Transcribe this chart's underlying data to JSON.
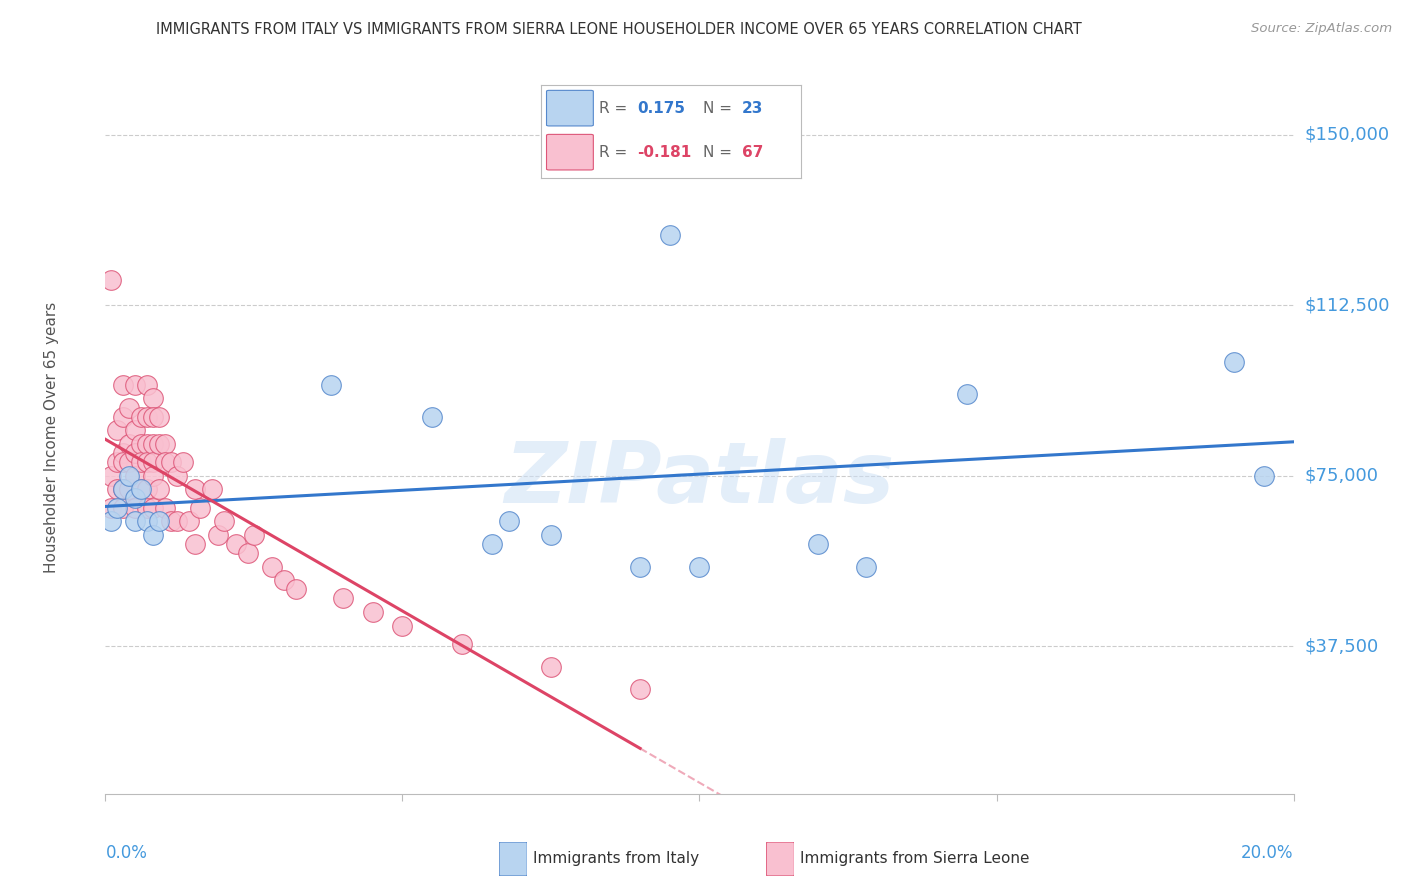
{
  "title": "IMMIGRANTS FROM ITALY VS IMMIGRANTS FROM SIERRA LEONE HOUSEHOLDER INCOME OVER 65 YEARS CORRELATION CHART",
  "source": "Source: ZipAtlas.com",
  "ylabel": "Householder Income Over 65 years",
  "watermark": "ZIPatlas",
  "italy_R": 0.175,
  "italy_N": 23,
  "sl_R": -0.181,
  "sl_N": 67,
  "ytick_labels": [
    "$37,500",
    "$75,000",
    "$112,500",
    "$150,000"
  ],
  "ytick_values": [
    37500,
    75000,
    112500,
    150000
  ],
  "ymin": 5000,
  "ymax": 162000,
  "xmin": 0.0,
  "xmax": 0.2,
  "italy_facecolor": "#b8d4f0",
  "sl_facecolor": "#f9c0d0",
  "italy_edgecolor": "#5588cc",
  "sl_edgecolor": "#dd5577",
  "italy_linecolor": "#3377cc",
  "sl_linecolor": "#dd4466",
  "grid_color": "#cccccc",
  "bg_color": "#ffffff",
  "title_color": "#333333",
  "axis_label_color": "#4499dd",
  "legend_border": "#bbbbbb",
  "italy_x": [
    0.001,
    0.002,
    0.003,
    0.004,
    0.005,
    0.005,
    0.006,
    0.007,
    0.008,
    0.009,
    0.038,
    0.055,
    0.065,
    0.068,
    0.075,
    0.09,
    0.095,
    0.1,
    0.12,
    0.128,
    0.145,
    0.19,
    0.195
  ],
  "italy_y": [
    65000,
    68000,
    72000,
    75000,
    65000,
    70000,
    72000,
    65000,
    62000,
    65000,
    95000,
    88000,
    60000,
    65000,
    62000,
    55000,
    128000,
    55000,
    60000,
    55000,
    93000,
    100000,
    75000
  ],
  "sl_x": [
    0.001,
    0.001,
    0.001,
    0.002,
    0.002,
    0.002,
    0.003,
    0.003,
    0.003,
    0.003,
    0.003,
    0.003,
    0.004,
    0.004,
    0.004,
    0.004,
    0.005,
    0.005,
    0.005,
    0.005,
    0.005,
    0.006,
    0.006,
    0.006,
    0.006,
    0.007,
    0.007,
    0.007,
    0.007,
    0.007,
    0.007,
    0.008,
    0.008,
    0.008,
    0.008,
    0.008,
    0.008,
    0.009,
    0.009,
    0.009,
    0.01,
    0.01,
    0.01,
    0.011,
    0.011,
    0.012,
    0.012,
    0.013,
    0.014,
    0.015,
    0.015,
    0.016,
    0.018,
    0.019,
    0.02,
    0.022,
    0.024,
    0.025,
    0.028,
    0.03,
    0.032,
    0.04,
    0.045,
    0.05,
    0.06,
    0.075,
    0.09
  ],
  "sl_y": [
    75000,
    68000,
    118000,
    85000,
    78000,
    72000,
    95000,
    88000,
    80000,
    78000,
    72000,
    68000,
    90000,
    82000,
    78000,
    72000,
    95000,
    85000,
    80000,
    75000,
    68000,
    88000,
    82000,
    78000,
    72000,
    95000,
    88000,
    82000,
    78000,
    72000,
    68000,
    92000,
    88000,
    82000,
    78000,
    75000,
    68000,
    88000,
    82000,
    72000,
    82000,
    78000,
    68000,
    78000,
    65000,
    75000,
    65000,
    78000,
    65000,
    72000,
    60000,
    68000,
    72000,
    62000,
    65000,
    60000,
    58000,
    62000,
    55000,
    52000,
    50000,
    48000,
    45000,
    42000,
    38000,
    33000,
    28000
  ]
}
